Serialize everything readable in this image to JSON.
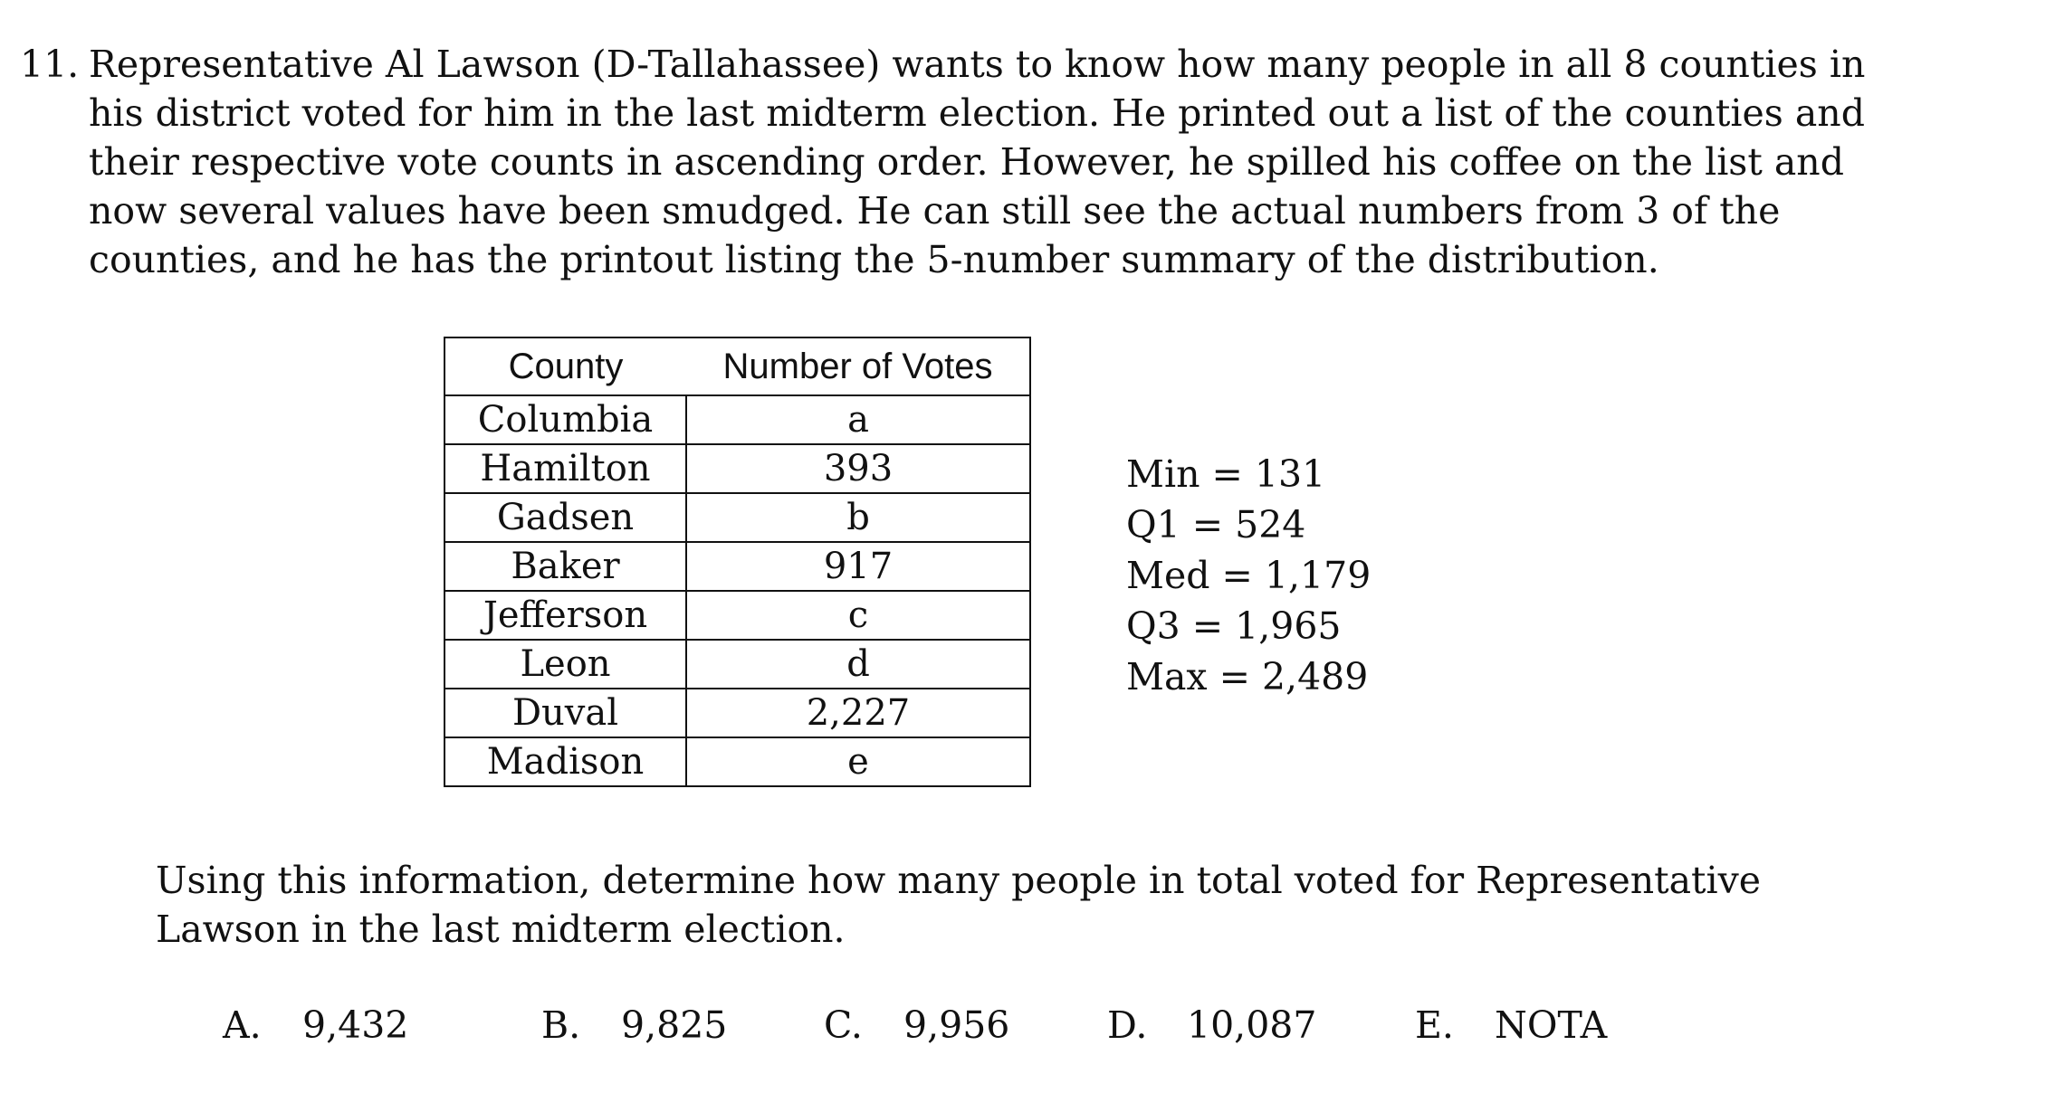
{
  "question": {
    "number": "11.",
    "lines": [
      "Representative Al Lawson (D-Tallahassee) wants to know how many people in all 8 counties in",
      "his district voted for him in the last midterm election. He printed out a list of the counties and",
      "their respective vote counts in ascending order. However, he spilled his coffee on the list and",
      "now several values have been smudged. He can still see the actual numbers from 3 of the",
      "counties, and he has the printout listing the 5-number summary of the distribution."
    ]
  },
  "table": {
    "headers": [
      "County",
      "Number of Votes"
    ],
    "rows": [
      {
        "county": "Columbia",
        "votes": "a"
      },
      {
        "county": "Hamilton",
        "votes": "393"
      },
      {
        "county": "Gadsen",
        "votes": "b"
      },
      {
        "county": "Baker",
        "votes": "917"
      },
      {
        "county": "Jefferson",
        "votes": "c"
      },
      {
        "county": "Leon",
        "votes": "d"
      },
      {
        "county": "Duval",
        "votes": "2,227"
      },
      {
        "county": "Madison",
        "votes": "e"
      }
    ]
  },
  "summary": [
    "Min = 131",
    "Q1 = 524",
    "Med = 1,179",
    "Q3 = 1,965",
    "Max = 2,489"
  ],
  "prompt": {
    "lines": [
      "Using this information, determine how many people in total voted for Representative",
      "Lawson in the last midterm election."
    ]
  },
  "choices": [
    {
      "letter": "A.",
      "value": "9,432"
    },
    {
      "letter": "B.",
      "value": "9,825"
    },
    {
      "letter": "C.",
      "value": "9,956"
    },
    {
      "letter": "D.",
      "value": "10,087"
    },
    {
      "letter": "E.",
      "value": "NOTA"
    }
  ]
}
